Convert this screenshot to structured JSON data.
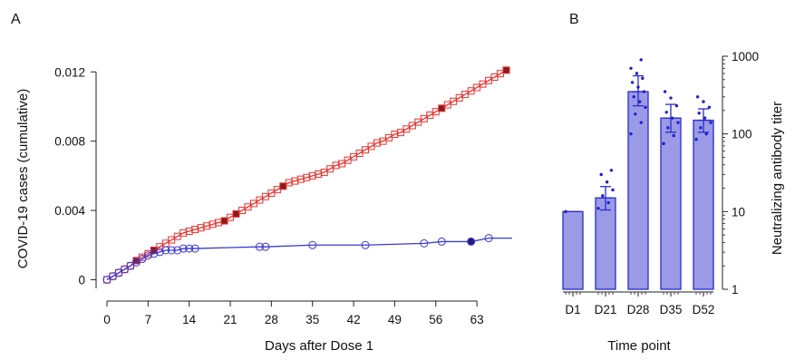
{
  "chart_data": [
    {
      "panel": "A",
      "type": "line",
      "xlabel": "Days after Dose 1",
      "ylabel": "COVID-19 cases (cumulative)",
      "xlim": [
        0,
        69
      ],
      "ylim": [
        -0.0005,
        0.0128
      ],
      "x_ticks": [
        0,
        7,
        14,
        21,
        28,
        35,
        42,
        49,
        56,
        63
      ],
      "y_ticks": [
        0,
        0.004,
        0.008,
        0.012
      ],
      "y_tick_labels": [
        "0",
        "0.004",
        "0.008",
        "0.012"
      ],
      "colors": {
        "red": "#e8322f",
        "red_fill": "#8b1a1a",
        "blue": "#3a3ad6",
        "blue_fill": "#1e1e7a"
      },
      "series": [
        {
          "marker": "square",
          "color": "#e8322f",
          "x": [
            0,
            1,
            2,
            3,
            4,
            5,
            6,
            7,
            8,
            9,
            10,
            11,
            12,
            13,
            14,
            15,
            16,
            17,
            18,
            19,
            20,
            21,
            22,
            23,
            24,
            25,
            26,
            27,
            28,
            29,
            30,
            31,
            32,
            33,
            34,
            35,
            36,
            37,
            38,
            39,
            40,
            41,
            42,
            43,
            44,
            45,
            46,
            47,
            48,
            49,
            50,
            51,
            52,
            53,
            54,
            55,
            56,
            57,
            58,
            59,
            60,
            61,
            62,
            63,
            64,
            65,
            66,
            67,
            68
          ],
          "y": [
            0,
            0.0002,
            0.0004,
            0.0006,
            0.0008,
            0.0011,
            0.0013,
            0.0015,
            0.0017,
            0.0019,
            0.0021,
            0.0023,
            0.0025,
            0.0027,
            0.0028,
            0.0029,
            0.003,
            0.0031,
            0.0032,
            0.0033,
            0.0034,
            0.0036,
            0.0038,
            0.004,
            0.0042,
            0.0044,
            0.0046,
            0.0048,
            0.005,
            0.0052,
            0.0054,
            0.0056,
            0.0057,
            0.0058,
            0.0059,
            0.006,
            0.0061,
            0.0062,
            0.0064,
            0.0066,
            0.0067,
            0.0069,
            0.0071,
            0.0073,
            0.0075,
            0.0077,
            0.0079,
            0.008,
            0.0082,
            0.0084,
            0.0085,
            0.0087,
            0.0089,
            0.0091,
            0.0093,
            0.0095,
            0.0097,
            0.0099,
            0.0101,
            0.0103,
            0.0105,
            0.0107,
            0.0109,
            0.0111,
            0.0113,
            0.0115,
            0.0117,
            0.0119,
            0.0121
          ],
          "filled_x": [
            5,
            8,
            20,
            22,
            30,
            57,
            68
          ]
        },
        {
          "marker": "circle",
          "color": "#3a3ad6",
          "x": [
            0,
            1,
            2,
            3,
            4,
            5,
            6,
            7,
            8,
            9,
            10,
            11,
            12,
            13,
            14,
            15,
            26,
            27,
            35,
            44,
            54,
            57,
            62,
            65
          ],
          "y": [
            0,
            0.0002,
            0.0004,
            0.0006,
            0.0008,
            0.001,
            0.0012,
            0.0014,
            0.0015,
            0.0016,
            0.0017,
            0.0017,
            0.0017,
            0.0018,
            0.0018,
            0.0018,
            0.0019,
            0.0019,
            0.002,
            0.002,
            0.0021,
            0.0022,
            0.0022,
            0.0024
          ],
          "line_to_x": 69,
          "filled_x": [
            62
          ]
        }
      ]
    },
    {
      "panel": "B",
      "type": "bar",
      "xlabel": "Time point",
      "ylabel": "Neutralizing antibody titer",
      "y_scale": "log",
      "ylim": [
        1,
        1000
      ],
      "y_ticks": [
        1,
        10,
        100,
        1000
      ],
      "y_tick_labels": [
        "1",
        "10",
        "100",
        "1000"
      ],
      "categories": [
        "D1",
        "D21",
        "D28",
        "D35",
        "D52"
      ],
      "values": [
        10,
        15,
        350,
        160,
        150
      ],
      "error_low": [
        10,
        10.5,
        230,
        105,
        105
      ],
      "error_high": [
        10,
        21,
        560,
        240,
        210
      ],
      "points": [
        [
          10
        ],
        [
          11,
          13,
          16,
          19,
          24,
          30,
          34
        ],
        [
          100,
          140,
          180,
          220,
          260,
          300,
          350,
          400,
          460,
          520,
          600,
          700,
          900
        ],
        [
          75,
          95,
          120,
          140,
          160,
          190,
          230,
          290,
          350
        ],
        [
          85,
          100,
          120,
          140,
          160,
          185,
          220,
          260,
          300
        ]
      ],
      "colors": {
        "bar": "#9a9ae6",
        "edge": "#2a2ad2",
        "dot": "#2020c8"
      }
    }
  ],
  "labels": {
    "panel_a": "A",
    "panel_b": "B"
  }
}
